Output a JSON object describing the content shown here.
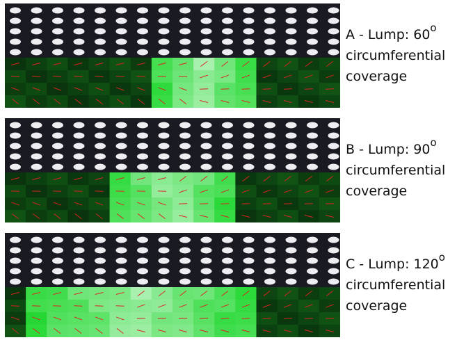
{
  "panels": [
    {
      "label": "A - Lump: 60",
      "degree": "o",
      "lines": [
        "circumferential",
        "coverage"
      ]
    },
    {
      "label": "B - Lump: 90",
      "degree": "o",
      "lines": [
        "circumferential",
        "coverage"
      ]
    },
    {
      "label": "C - Lump: 120",
      "degree": "o",
      "lines": [
        "circumferential",
        "coverage"
      ]
    }
  ]
}
